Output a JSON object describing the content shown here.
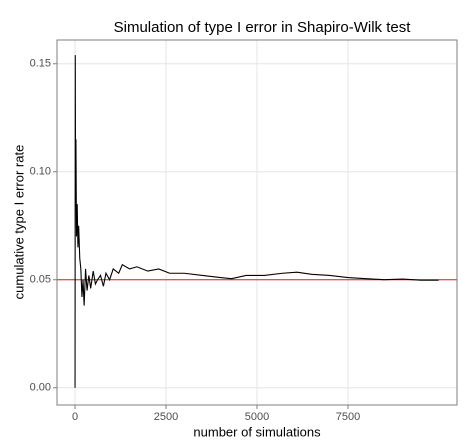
{
  "chart_data": {
    "type": "line",
    "title": "Simulation of type I error in Shapiro-Wilk test",
    "x_label": "number of simulations",
    "y_label": "cumulative type I error rate",
    "x": [
      1,
      7,
      15,
      25,
      40,
      60,
      80,
      100,
      130,
      160,
      190,
      220,
      250,
      290,
      330,
      380,
      430,
      500,
      560,
      620,
      700,
      780,
      850,
      950,
      1050,
      1200,
      1300,
      1500,
      1700,
      2000,
      2300,
      2600,
      3000,
      3500,
      4000,
      4300,
      4700,
      5200,
      5700,
      6100,
      6500,
      7000,
      7500,
      8000,
      8500,
      9000,
      9500,
      9990
    ],
    "series": [
      {
        "name": "cumulative type I error rate",
        "color": "#000000",
        "values": [
          0,
          0.154,
          0.09,
          0.115,
          0.07,
          0.085,
          0.065,
          0.075,
          0.06,
          0.055,
          0.042,
          0.05,
          0.038,
          0.055,
          0.045,
          0.052,
          0.046,
          0.054,
          0.048,
          0.05,
          0.052,
          0.047,
          0.053,
          0.05,
          0.055,
          0.053,
          0.057,
          0.055,
          0.056,
          0.054,
          0.055,
          0.053,
          0.053,
          0.052,
          0.051,
          0.0505,
          0.052,
          0.052,
          0.053,
          0.0535,
          0.0525,
          0.052,
          0.051,
          0.0505,
          0.05,
          0.0503,
          0.0498,
          0.0498
        ]
      }
    ],
    "hline": {
      "value": 0.05,
      "color": "#e41a1c"
    },
    "xlim": [
      -495,
      10495
    ],
    "ylim": [
      -0.008,
      0.161
    ],
    "xticks": [
      0,
      2500,
      5000,
      7500
    ],
    "yticks": [
      {
        "value": 0,
        "label": "0.00"
      },
      {
        "value": 0.05,
        "label": "0.05"
      },
      {
        "value": 0.1,
        "label": "0.10"
      },
      {
        "value": 0.15,
        "label": "0.15"
      }
    ],
    "grid": true
  }
}
